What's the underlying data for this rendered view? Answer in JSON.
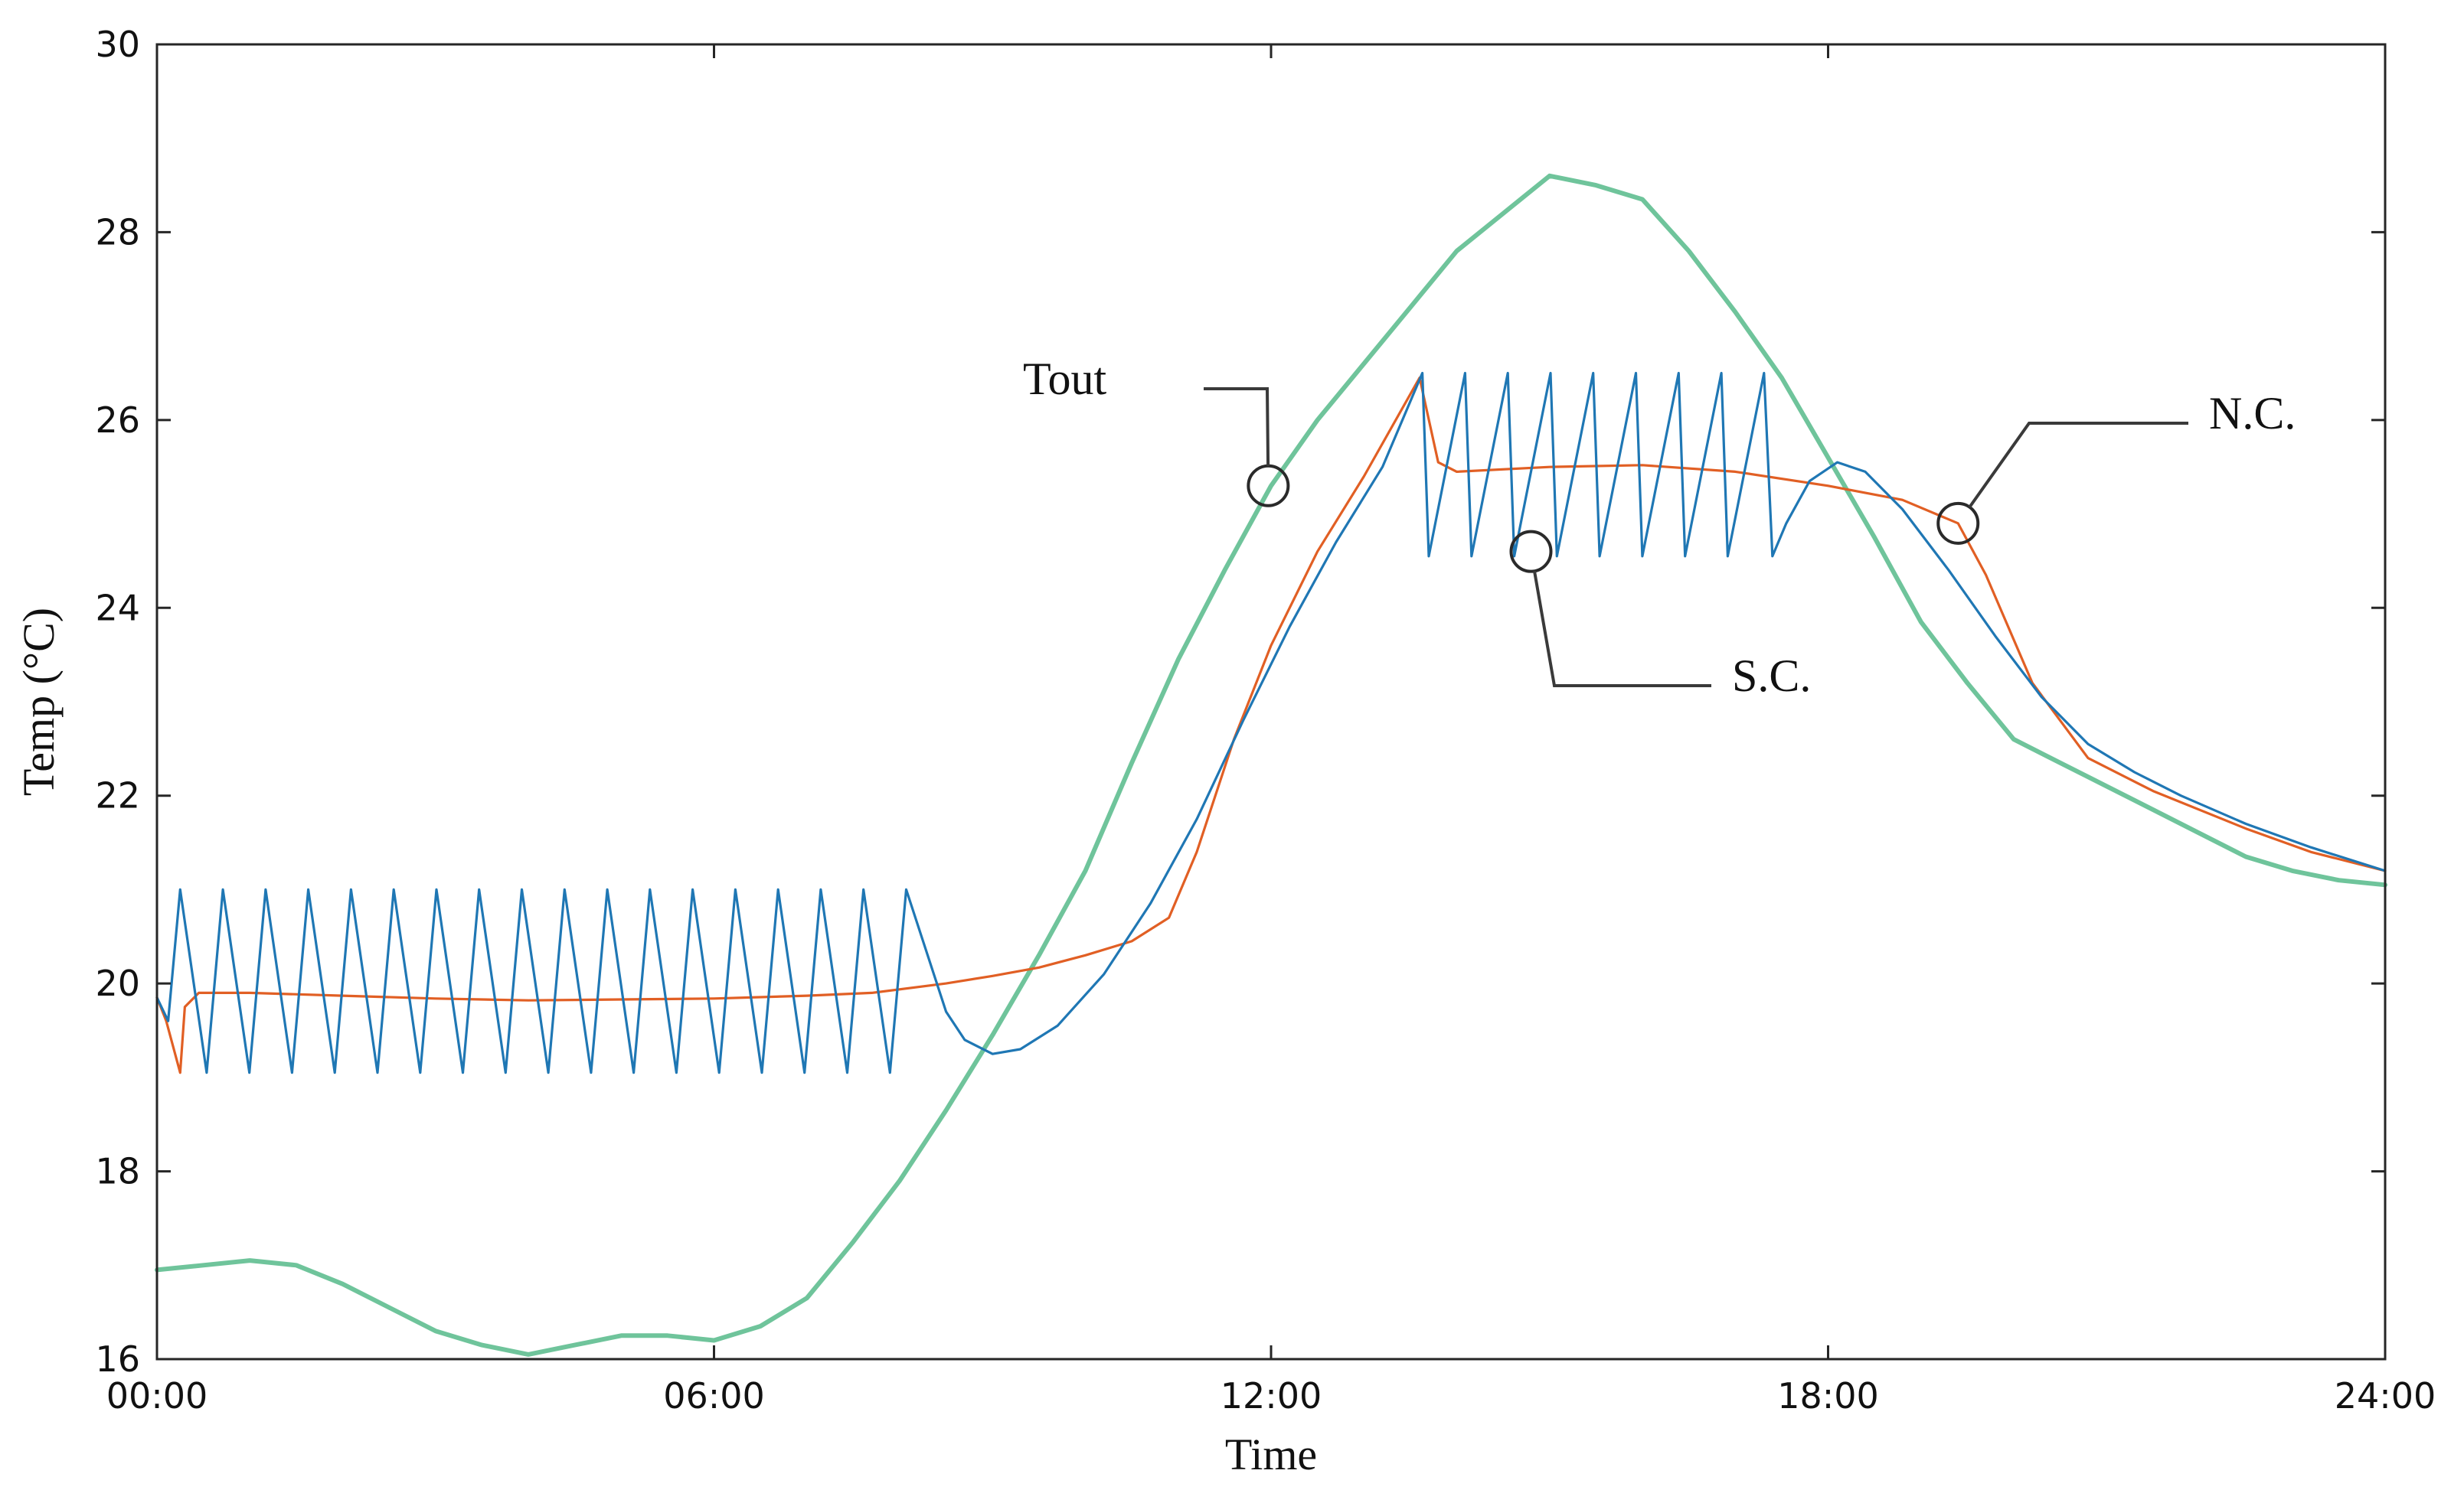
{
  "chart_data": {
    "type": "line",
    "title": "",
    "xlabel": "Time",
    "ylabel": "Temp (°C)",
    "xlim": [
      0,
      24
    ],
    "ylim": [
      16,
      30
    ],
    "x_ticks": [
      {
        "value": 0,
        "label": "00:00"
      },
      {
        "value": 6,
        "label": "06:00"
      },
      {
        "value": 12,
        "label": "12:00"
      },
      {
        "value": 18,
        "label": "18:00"
      },
      {
        "value": 24,
        "label": "24:00"
      }
    ],
    "y_ticks": [
      {
        "value": 16,
        "label": "16"
      },
      {
        "value": 18,
        "label": "18"
      },
      {
        "value": 20,
        "label": "20"
      },
      {
        "value": 22,
        "label": "22"
      },
      {
        "value": 24,
        "label": "24"
      },
      {
        "value": 26,
        "label": "26"
      },
      {
        "value": 28,
        "label": "28"
      },
      {
        "value": 30,
        "label": "30"
      }
    ],
    "grid": false,
    "series": [
      {
        "name": "Tout",
        "color": "#6fc49b",
        "points": [
          [
            0,
            16.95
          ],
          [
            0.5,
            17.0
          ],
          [
            1,
            17.05
          ],
          [
            1.5,
            17.0
          ],
          [
            2,
            16.8
          ],
          [
            2.5,
            16.55
          ],
          [
            3,
            16.3
          ],
          [
            3.5,
            16.15
          ],
          [
            4,
            16.05
          ],
          [
            4.5,
            16.15
          ],
          [
            5,
            16.25
          ],
          [
            5.5,
            16.25
          ],
          [
            6,
            16.2
          ],
          [
            6.5,
            16.35
          ],
          [
            7,
            16.65
          ],
          [
            7.5,
            17.25
          ],
          [
            8,
            17.9
          ],
          [
            8.5,
            18.65
          ],
          [
            9,
            19.45
          ],
          [
            9.5,
            20.3
          ],
          [
            10,
            21.2
          ],
          [
            10.5,
            22.35
          ],
          [
            11,
            23.45
          ],
          [
            11.5,
            24.4
          ],
          [
            12,
            25.3
          ],
          [
            12.5,
            26.0
          ],
          [
            13,
            26.6
          ],
          [
            13.5,
            27.2
          ],
          [
            14,
            27.8
          ],
          [
            14.5,
            28.2
          ],
          [
            15,
            28.6
          ],
          [
            15.5,
            28.5
          ],
          [
            16,
            28.35
          ],
          [
            16.5,
            27.8
          ],
          [
            17,
            27.15
          ],
          [
            17.5,
            26.45
          ],
          [
            18,
            25.6
          ],
          [
            18.5,
            24.75
          ],
          [
            19,
            23.85
          ],
          [
            19.5,
            23.2
          ],
          [
            20,
            22.6
          ],
          [
            20.5,
            22.35
          ],
          [
            21,
            22.1
          ],
          [
            21.5,
            21.85
          ],
          [
            22,
            21.6
          ],
          [
            22.5,
            21.35
          ],
          [
            23,
            21.2
          ],
          [
            23.5,
            21.1
          ],
          [
            24,
            21.05
          ]
        ]
      },
      {
        "name": "N.C.",
        "color": "#e15f24",
        "points": [
          [
            0,
            19.85
          ],
          [
            0.1,
            19.6
          ],
          [
            0.25,
            19.05
          ],
          [
            0.3,
            19.75
          ],
          [
            0.45,
            19.9
          ],
          [
            1,
            19.9
          ],
          [
            2,
            19.87
          ],
          [
            3,
            19.84
          ],
          [
            4,
            19.82
          ],
          [
            5,
            19.83
          ],
          [
            6,
            19.84
          ],
          [
            7,
            19.87
          ],
          [
            7.7,
            19.9
          ],
          [
            8.5,
            20.0
          ],
          [
            9,
            20.08
          ],
          [
            9.5,
            20.17
          ],
          [
            10,
            20.3
          ],
          [
            10.5,
            20.45
          ],
          [
            10.9,
            20.7
          ],
          [
            11.2,
            21.4
          ],
          [
            11.6,
            22.6
          ],
          [
            12,
            23.6
          ],
          [
            12.5,
            24.6
          ],
          [
            13,
            25.4
          ],
          [
            13.6,
            26.45
          ],
          [
            13.8,
            25.55
          ],
          [
            14,
            25.45
          ],
          [
            15,
            25.5
          ],
          [
            16,
            25.52
          ],
          [
            17,
            25.45
          ],
          [
            18,
            25.3
          ],
          [
            18.8,
            25.15
          ],
          [
            19.4,
            24.9
          ],
          [
            19.7,
            24.35
          ],
          [
            20.2,
            23.2
          ],
          [
            20.8,
            22.4
          ],
          [
            21.5,
            22.05
          ],
          [
            22.5,
            21.65
          ],
          [
            23.2,
            21.4
          ],
          [
            24,
            21.2
          ]
        ]
      },
      {
        "name": "S.C.",
        "color": "#1f77b4",
        "points": []
      }
    ],
    "annotations": [
      {
        "text": "Tout",
        "series": "Tout",
        "x": 11.97,
        "y": 25.3
      },
      {
        "text": "N.C.",
        "series": "N.C.",
        "x": 19.4,
        "y": 24.9
      },
      {
        "text": "S.C.",
        "series": "S.C.",
        "x": 14.8,
        "y": 24.6
      }
    ]
  }
}
